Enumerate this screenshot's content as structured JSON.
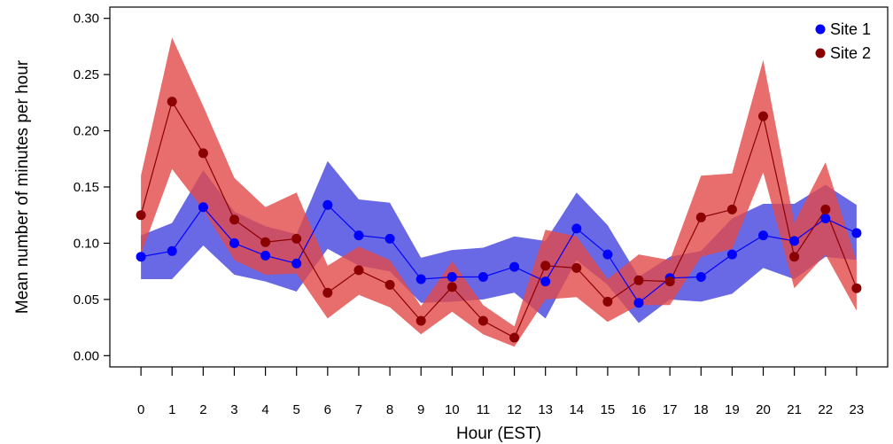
{
  "chart_data": {
    "type": "line",
    "xlabel": "Hour (EST)",
    "ylabel": "Mean number of minutes per hour",
    "x": [
      0,
      1,
      2,
      3,
      4,
      5,
      6,
      7,
      8,
      9,
      10,
      11,
      12,
      13,
      14,
      15,
      16,
      17,
      18,
      19,
      20,
      21,
      22,
      23
    ],
    "xlim": [
      -1,
      24
    ],
    "ylim": [
      -0.01,
      0.31
    ],
    "yticks": [
      0.0,
      0.05,
      0.1,
      0.15,
      0.2,
      0.25,
      0.3
    ],
    "ytick_labels": [
      "0.00",
      "0.05",
      "0.10",
      "0.15",
      "0.20",
      "0.25",
      "0.30"
    ],
    "legend_position": "top-right",
    "grid": false,
    "series": [
      {
        "name": "Site 1",
        "color": "#0000ff",
        "band_color": "#4f4fe0",
        "values": [
          0.088,
          0.093,
          0.132,
          0.1,
          0.089,
          0.082,
          0.134,
          0.107,
          0.104,
          0.068,
          0.07,
          0.07,
          0.079,
          0.066,
          0.113,
          0.09,
          0.047,
          0.069,
          0.07,
          0.09,
          0.107,
          0.102,
          0.122,
          0.109
        ],
        "lower": [
          0.068,
          0.068,
          0.098,
          0.072,
          0.066,
          0.057,
          0.095,
          0.08,
          0.075,
          0.047,
          0.048,
          0.05,
          0.056,
          0.033,
          0.085,
          0.063,
          0.029,
          0.05,
          0.048,
          0.055,
          0.078,
          0.068,
          0.088,
          0.085
        ],
        "upper": [
          0.107,
          0.118,
          0.165,
          0.128,
          0.115,
          0.108,
          0.173,
          0.139,
          0.136,
          0.087,
          0.094,
          0.096,
          0.106,
          0.102,
          0.145,
          0.116,
          0.07,
          0.088,
          0.093,
          0.122,
          0.135,
          0.135,
          0.152,
          0.134
        ]
      },
      {
        "name": "Site 2",
        "color": "#8b0000",
        "band_color": "#e24848",
        "values": [
          0.125,
          0.226,
          0.18,
          0.121,
          0.101,
          0.104,
          0.056,
          0.076,
          0.063,
          0.031,
          0.061,
          0.031,
          0.016,
          0.08,
          0.078,
          0.048,
          0.067,
          0.066,
          0.123,
          0.13,
          0.213,
          0.088,
          0.13,
          0.06
        ],
        "lower": [
          0.09,
          0.166,
          0.13,
          0.085,
          0.072,
          0.073,
          0.033,
          0.054,
          0.043,
          0.019,
          0.039,
          0.019,
          0.008,
          0.05,
          0.052,
          0.03,
          0.045,
          0.045,
          0.088,
          0.095,
          0.163,
          0.06,
          0.09,
          0.04
        ],
        "upper": [
          0.16,
          0.283,
          0.222,
          0.158,
          0.132,
          0.145,
          0.08,
          0.097,
          0.085,
          0.044,
          0.084,
          0.045,
          0.026,
          0.112,
          0.106,
          0.068,
          0.09,
          0.085,
          0.16,
          0.162,
          0.263,
          0.118,
          0.172,
          0.084
        ]
      }
    ]
  }
}
